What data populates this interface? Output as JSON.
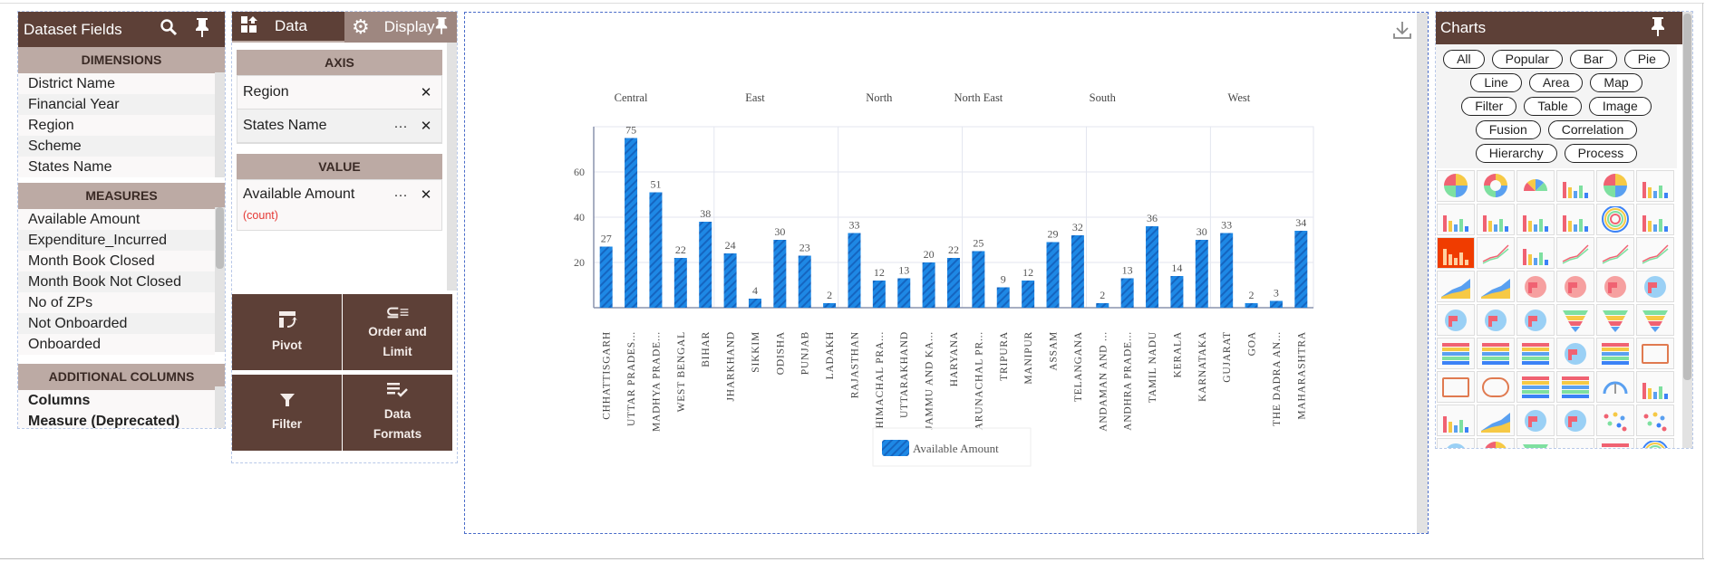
{
  "dataset_fields": {
    "title": "Dataset Fields",
    "dimensions_label": "DIMENSIONS",
    "dimensions": [
      "District Name",
      "Financial Year",
      "Region",
      "Scheme",
      "States Name"
    ],
    "measures_label": "MEASURES",
    "measures": [
      "Available Amount",
      "Expenditure_Incurred",
      "Month Book Closed",
      "Month Book Not Closed",
      "No of ZPs",
      "Not Onboarded",
      "Onboarded"
    ],
    "additional_label": "ADDITIONAL COLUMNS",
    "additional": [
      "Columns",
      "Measure (Deprecated)"
    ]
  },
  "config": {
    "tab_data": "Data",
    "tab_display": "Display",
    "axis_label": "AXIS",
    "axis_fields": [
      "Region",
      "States Name"
    ],
    "value_label": "VALUE",
    "value_field": "Available Amount",
    "value_agg": "(count)",
    "buttons": {
      "pivot": "Pivot",
      "order": "Order and Limit",
      "filter": "Filter",
      "formats": "Data Formats"
    }
  },
  "charts_panel": {
    "title": "Charts",
    "filters": [
      "All",
      "Popular",
      "Bar",
      "Pie",
      "Line",
      "Area",
      "Map",
      "Filter",
      "Table",
      "Image",
      "Fusion",
      "Correlation",
      "Hierarchy",
      "Process"
    ],
    "thumbnails": [
      "pie",
      "donut",
      "semi-pie",
      "semi-donut",
      "pie-3d",
      "column",
      "stacked-column",
      "column",
      "column-flat",
      "column-3d",
      "radial",
      "horizontal-bar",
      "multi-column",
      "combo",
      "grouped-column",
      "line",
      "line",
      "multi-line",
      "step-area",
      "stacked-area",
      "india-map",
      "india-map",
      "india-map",
      "world-map",
      "world-map",
      "world-map",
      "world-map",
      "funnel",
      "funnel",
      "funnel",
      "range-filter",
      "range-filter",
      "table",
      "heatmap-table",
      "grid-table",
      "image",
      "toggle",
      "image-url",
      "data-table",
      "data-table",
      "gauge",
      "candlestick",
      "box-plot",
      "stream",
      "heatmap",
      "heatmap",
      "scatter",
      "bubble",
      "treemap",
      "pie",
      "funnel-3d",
      "waterfall",
      "pivot-table",
      "sunburst"
    ],
    "selected": "multi-column",
    "accent": "#f03c00"
  },
  "colors": {
    "brand": "#5d4037",
    "section": "#bcaaa4",
    "bar": "#1e88e5",
    "bar_stripe": "#1565c0",
    "agg": "#e53935"
  },
  "chart_data": {
    "type": "bar",
    "categories": [
      "CHHATTISGARH",
      "UTTAR PRADES...",
      "MADHYA PRADE...",
      "WEST BENGAL",
      "BIHAR",
      "JHARKHAND",
      "SIKKIM",
      "ODISHA",
      "PUNJAB",
      "LADAKH",
      "RAJASTHAN",
      "HIMACHAL PRA...",
      "UTTARAKHAND",
      "JAMMU AND KA...",
      "HARYANA",
      "ARUNACHAL PR...",
      "TRIPURA",
      "MANIPUR",
      "ASSAM",
      "TELANGANA",
      "ANDAMAN AND ...",
      "ANDHRA PRADE...",
      "TAMIL NADU",
      "KERALA",
      "KARNATAKA",
      "GUJARAT",
      "GOA",
      "THE DADRA AN...",
      "MAHARASHTRA"
    ],
    "series": [
      {
        "name": "Available Amount",
        "values": [
          27,
          75,
          51,
          22,
          38,
          24,
          4,
          30,
          23,
          2,
          33,
          12,
          13,
          20,
          22,
          25,
          9,
          12,
          29,
          32,
          2,
          13,
          36,
          14,
          30,
          33,
          2,
          3,
          34
        ]
      }
    ],
    "groups": [
      {
        "label": "Central",
        "from": 0,
        "to": 2
      },
      {
        "label": "East",
        "from": 3,
        "to": 9
      },
      {
        "label": "North",
        "from": 10,
        "to": 12
      },
      {
        "label": "North East",
        "from": 13,
        "to": 17
      },
      {
        "label": "South",
        "from": 18,
        "to": 22
      },
      {
        "label": "West",
        "from": 23,
        "to": 28
      }
    ],
    "yticks": [
      20,
      40,
      60
    ],
    "ylim": [
      0,
      80
    ],
    "grid": true,
    "legend": "bottom"
  }
}
